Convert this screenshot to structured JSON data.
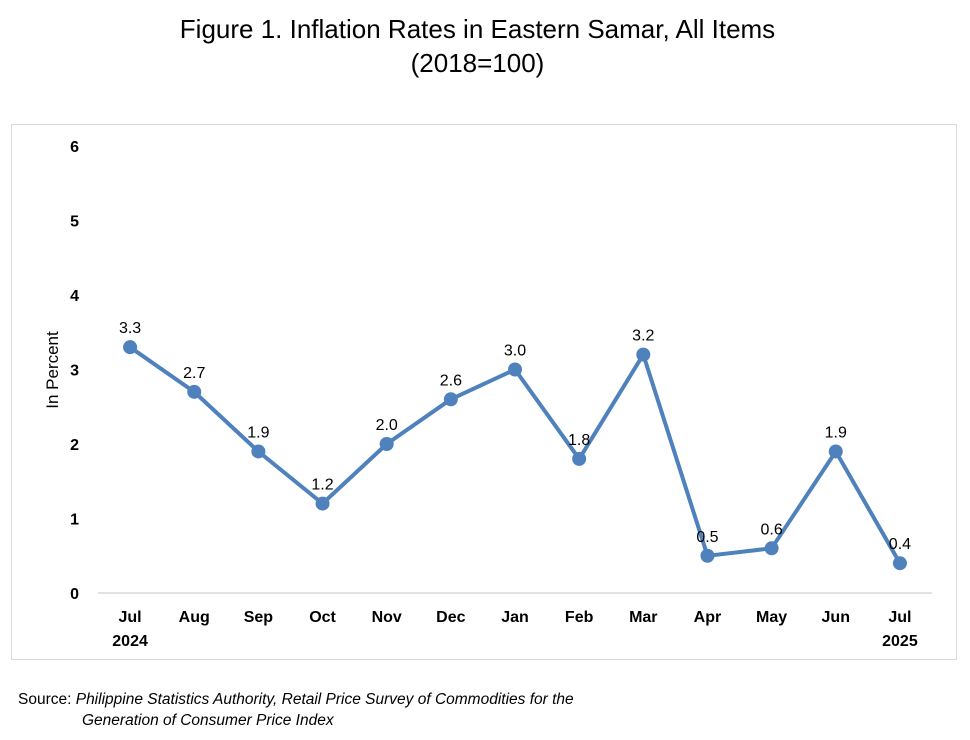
{
  "title_line1": "Figure 1. Inflation Rates in Eastern Samar, All Items",
  "title_line2": "(2018=100)",
  "source": {
    "label": "Source:",
    "text_line1": " Philippine Statistics Authority, Retail Price Survey of Commodities for the",
    "text_line2": "Generation of Consumer Price Index"
  },
  "colors": {
    "line": "#4f81bd",
    "axis": "#d9d9d9",
    "text": "#000000"
  },
  "chart_data": {
    "type": "line",
    "title": "Figure 1. Inflation Rates in Eastern Samar, All Items (2018=100)",
    "xlabel": "",
    "ylabel": "In Percent",
    "ylim": [
      0,
      6
    ],
    "yticks": [
      "0",
      "1",
      "2",
      "3",
      "4",
      "5",
      "6"
    ],
    "grid": false,
    "categories": [
      "Jul 2024",
      "Aug",
      "Sep",
      "Oct",
      "Nov",
      "Dec",
      "Jan",
      "Feb",
      "Mar",
      "Apr",
      "May",
      "Jun",
      "Jul 2025"
    ],
    "tick_labels": [
      [
        "Jul",
        "2024"
      ],
      [
        "Aug"
      ],
      [
        "Sep"
      ],
      [
        "Oct"
      ],
      [
        "Nov"
      ],
      [
        "Dec"
      ],
      [
        "Jan"
      ],
      [
        "Feb"
      ],
      [
        "Mar"
      ],
      [
        "Apr"
      ],
      [
        "May"
      ],
      [
        "Jun"
      ],
      [
        "Jul",
        "2025"
      ]
    ],
    "series": [
      {
        "values": [
          3.3,
          2.7,
          1.9,
          1.2,
          2.0,
          2.6,
          3.0,
          1.8,
          3.2,
          0.5,
          0.6,
          1.9,
          0.4
        ],
        "labels": [
          "3.3",
          "2.7",
          "1.9",
          "1.2",
          "2.0",
          "2.6",
          "3.0",
          "1.8",
          "3.2",
          "0.5",
          "0.6",
          "1.9",
          "0.4"
        ]
      }
    ]
  }
}
